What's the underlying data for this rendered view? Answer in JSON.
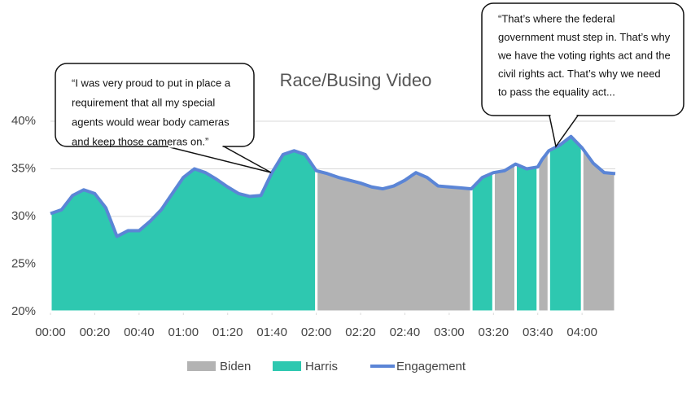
{
  "chart_data": {
    "type": "area",
    "title": "Race/Busing Video",
    "x": [
      0,
      5,
      10,
      15,
      20,
      25,
      30,
      35,
      40,
      45,
      50,
      55,
      60,
      65,
      70,
      75,
      80,
      85,
      90,
      95,
      100,
      105,
      110,
      115,
      120,
      125,
      130,
      135,
      140,
      145,
      150,
      155,
      160,
      165,
      170,
      175,
      180,
      185,
      190,
      195,
      200,
      205,
      210,
      215,
      220,
      222,
      225,
      230,
      235,
      240,
      245,
      250,
      255
    ],
    "series": [
      {
        "name": "Biden",
        "color": "#b3b3b3",
        "values": [
          null,
          null,
          null,
          null,
          null,
          null,
          null,
          null,
          null,
          null,
          null,
          null,
          null,
          null,
          null,
          null,
          null,
          null,
          null,
          null,
          null,
          null,
          null,
          null,
          34.8,
          34.5,
          34.1,
          33.8,
          33.5,
          33.1,
          32.9,
          33.2,
          33.8,
          34.6,
          34.1,
          33.2,
          33.1,
          33.0,
          32.9,
          null,
          34.6,
          34.8,
          35.5,
          null,
          35.2,
          36.0,
          36.9,
          null,
          null,
          37.2,
          35.6,
          34.6,
          34.5
        ]
      },
      {
        "name": "Harris",
        "color": "#2ec8b0",
        "values": [
          30.3,
          30.7,
          32.2,
          32.8,
          32.4,
          30.9,
          27.9,
          28.5,
          28.5,
          29.5,
          30.7,
          32.4,
          34.1,
          35.0,
          34.6,
          33.9,
          33.1,
          32.4,
          32.1,
          32.2,
          34.6,
          36.5,
          36.9,
          36.5,
          34.8,
          null,
          null,
          null,
          null,
          null,
          null,
          null,
          null,
          null,
          null,
          null,
          null,
          null,
          32.9,
          34.1,
          34.6,
          null,
          35.5,
          35.0,
          35.2,
          null,
          36.9,
          37.5,
          38.4,
          37.2,
          null,
          null,
          null
        ]
      },
      {
        "name": "Engagement",
        "color": "#5b85d6",
        "line": true,
        "values": [
          30.3,
          30.7,
          32.2,
          32.8,
          32.4,
          30.9,
          27.9,
          28.5,
          28.5,
          29.5,
          30.7,
          32.4,
          34.1,
          35.0,
          34.6,
          33.9,
          33.1,
          32.4,
          32.1,
          32.2,
          34.6,
          36.5,
          36.9,
          36.5,
          34.8,
          34.5,
          34.1,
          33.8,
          33.5,
          33.1,
          32.9,
          33.2,
          33.8,
          34.6,
          34.1,
          33.2,
          33.1,
          33.0,
          32.9,
          34.1,
          34.6,
          34.8,
          35.5,
          35.0,
          35.2,
          36.0,
          36.9,
          37.5,
          38.4,
          37.2,
          35.6,
          34.6,
          34.5
        ]
      }
    ],
    "xlim": [
      0,
      255
    ],
    "xticks": [
      {
        "value": 0,
        "label": "00:00"
      },
      {
        "value": 20,
        "label": "00:20"
      },
      {
        "value": 40,
        "label": "00:40"
      },
      {
        "value": 60,
        "label": "01:00"
      },
      {
        "value": 80,
        "label": "01:20"
      },
      {
        "value": 100,
        "label": "01:40"
      },
      {
        "value": 120,
        "label": "02:00"
      },
      {
        "value": 140,
        "label": "02:20"
      },
      {
        "value": 160,
        "label": "02:40"
      },
      {
        "value": 180,
        "label": "03:00"
      },
      {
        "value": 200,
        "label": "03:20"
      },
      {
        "value": 220,
        "label": "03:40"
      },
      {
        "value": 240,
        "label": "04:00"
      }
    ],
    "ylim": [
      20,
      40
    ],
    "yticks": [
      {
        "value": 20,
        "label": "20%"
      },
      {
        "value": 25,
        "label": "25%"
      },
      {
        "value": 30,
        "label": "30%"
      },
      {
        "value": 35,
        "label": "35%"
      },
      {
        "value": 40,
        "label": "40%"
      }
    ],
    "grid": true,
    "legend": "bottom",
    "annotations": [
      {
        "lines": [
          "“I was very proud to put in place a",
          "requirement that all my special",
          "agents would wear body cameras",
          "and keep those cameras on.”"
        ]
      },
      {
        "lines": [
          "“That’s where the federal",
          "government must step in. That’s why",
          "we have the voting rights act and the",
          "civil rights act. That’s why we need",
          "to pass the equality act..."
        ]
      }
    ]
  }
}
